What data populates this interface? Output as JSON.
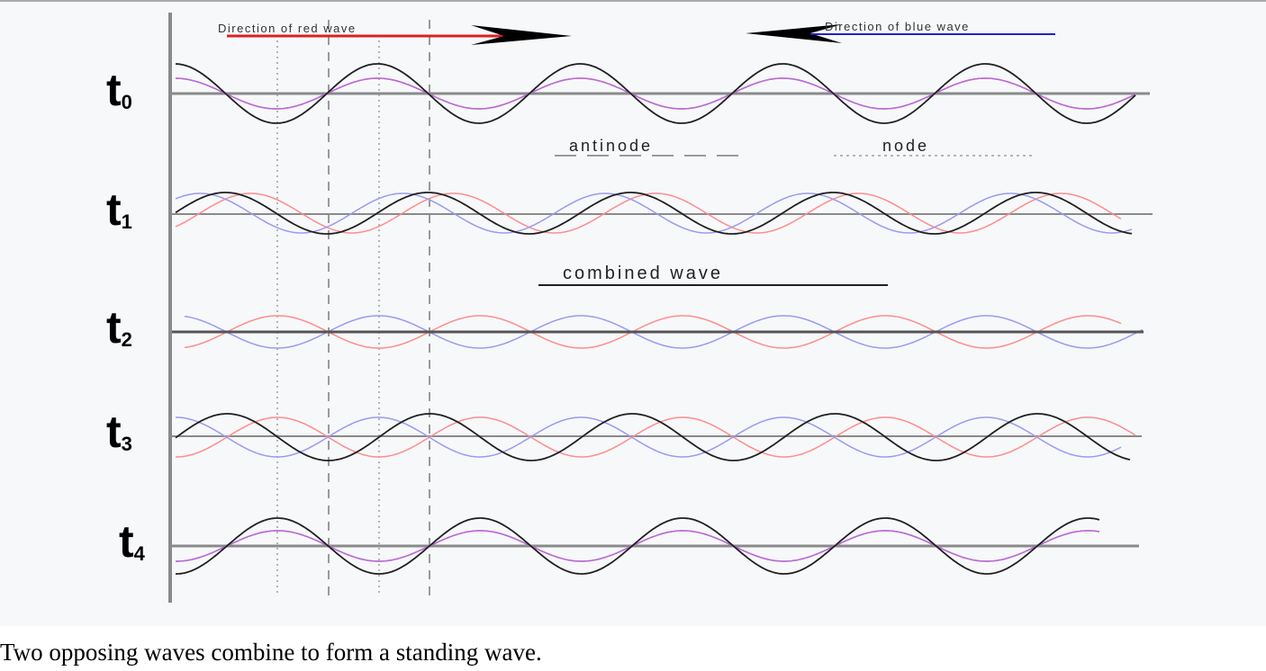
{
  "figure": {
    "red_direction_label": "Direction of red wave",
    "blue_direction_label": "Direction of blue wave",
    "antinode_label": "antinode",
    "node_label": "node",
    "combined_label": "combined wave",
    "time_labels": [
      {
        "base": "t",
        "sub": "0"
      },
      {
        "base": "t",
        "sub": "1"
      },
      {
        "base": "t",
        "sub": "2"
      },
      {
        "base": "t",
        "sub": "3"
      },
      {
        "base": "t",
        "sub": "4"
      }
    ],
    "colors": {
      "red_wave": "#ff8c8c",
      "blue_wave": "#9a9af2",
      "overlap_wave": "#b96ad4",
      "combined_wave": "#202020",
      "axis": "#8a8a8a",
      "panel": "#f7f8fa"
    }
  },
  "caption": "Two opposing waves combine to form a standing wave."
}
